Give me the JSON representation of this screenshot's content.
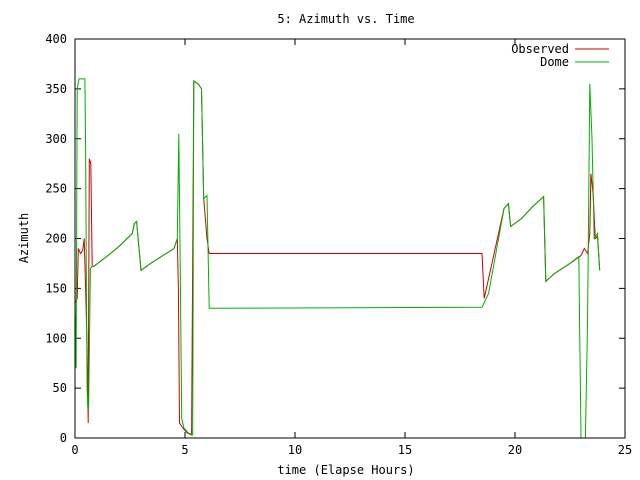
{
  "chart_data": {
    "type": "line",
    "title": "5: Azimuth vs. Time",
    "xlabel": "time (Elapse Hours)",
    "ylabel": "Azimuth",
    "xlim": [
      0,
      25
    ],
    "ylim": [
      0,
      400
    ],
    "xticks": [
      0,
      5,
      10,
      15,
      20,
      25
    ],
    "yticks": [
      0,
      50,
      100,
      150,
      200,
      250,
      300,
      350,
      400
    ],
    "grid": false,
    "legend_position": "top-right",
    "series": [
      {
        "name": "Observed",
        "color": "#cc0000",
        "points": [
          [
            0.0,
            135
          ],
          [
            0.1,
            140
          ],
          [
            0.15,
            190
          ],
          [
            0.25,
            185
          ],
          [
            0.35,
            188
          ],
          [
            0.42,
            200
          ],
          [
            0.48,
            150
          ],
          [
            0.55,
            90
          ],
          [
            0.6,
            15
          ],
          [
            0.65,
            280
          ],
          [
            0.72,
            275
          ],
          [
            0.78,
            172
          ],
          [
            0.85,
            172
          ],
          [
            1.5,
            183
          ],
          [
            2.0,
            192
          ],
          [
            2.6,
            205
          ],
          [
            2.7,
            215
          ],
          [
            2.8,
            217
          ],
          [
            3.0,
            168
          ],
          [
            3.5,
            176
          ],
          [
            4.0,
            183
          ],
          [
            4.5,
            190
          ],
          [
            4.65,
            200
          ],
          [
            4.7,
            150
          ],
          [
            4.75,
            15
          ],
          [
            4.9,
            10
          ],
          [
            5.1,
            5
          ],
          [
            5.3,
            3
          ],
          [
            5.4,
            358
          ],
          [
            5.6,
            355
          ],
          [
            5.75,
            350
          ],
          [
            5.85,
            240
          ],
          [
            6.0,
            200
          ],
          [
            6.1,
            185
          ],
          [
            18.5,
            185
          ],
          [
            18.6,
            140
          ],
          [
            19.5,
            230
          ],
          [
            19.7,
            235
          ],
          [
            19.8,
            212
          ],
          [
            20.3,
            220
          ],
          [
            20.8,
            232
          ],
          [
            21.3,
            242
          ],
          [
            21.4,
            157
          ],
          [
            21.8,
            165
          ],
          [
            22.5,
            175
          ],
          [
            23.0,
            183
          ],
          [
            23.15,
            190
          ],
          [
            23.3,
            185
          ],
          [
            23.4,
            205
          ],
          [
            23.45,
            265
          ],
          [
            23.55,
            245
          ],
          [
            23.65,
            200
          ],
          [
            23.75,
            202
          ],
          [
            23.85,
            168
          ]
        ]
      },
      {
        "name": "Dome",
        "color": "#00b000",
        "points": [
          [
            0.0,
            135
          ],
          [
            0.05,
            70
          ],
          [
            0.1,
            350
          ],
          [
            0.18,
            360
          ],
          [
            0.45,
            360
          ],
          [
            0.48,
            290
          ],
          [
            0.52,
            150
          ],
          [
            0.55,
            50
          ],
          [
            0.58,
            30
          ],
          [
            0.62,
            30
          ],
          [
            0.7,
            170
          ],
          [
            0.78,
            172
          ],
          [
            0.85,
            172
          ],
          [
            1.5,
            183
          ],
          [
            2.0,
            192
          ],
          [
            2.6,
            205
          ],
          [
            2.7,
            215
          ],
          [
            2.8,
            217
          ],
          [
            3.0,
            168
          ],
          [
            3.5,
            176
          ],
          [
            4.0,
            183
          ],
          [
            4.5,
            190
          ],
          [
            4.65,
            200
          ],
          [
            4.72,
            305
          ],
          [
            4.78,
            175
          ],
          [
            4.85,
            20
          ],
          [
            4.95,
            10
          ],
          [
            5.15,
            5
          ],
          [
            5.35,
            3
          ],
          [
            5.4,
            358
          ],
          [
            5.6,
            355
          ],
          [
            5.75,
            350
          ],
          [
            5.85,
            240
          ],
          [
            6.0,
            243
          ],
          [
            6.1,
            130
          ],
          [
            18.5,
            131
          ],
          [
            18.8,
            145
          ],
          [
            19.5,
            230
          ],
          [
            19.7,
            235
          ],
          [
            19.8,
            212
          ],
          [
            20.3,
            220
          ],
          [
            20.8,
            232
          ],
          [
            21.3,
            242
          ],
          [
            21.4,
            157
          ],
          [
            21.8,
            165
          ],
          [
            22.5,
            175
          ],
          [
            22.9,
            182
          ],
          [
            23.0,
            0
          ],
          [
            23.2,
            0
          ],
          [
            23.3,
            120
          ],
          [
            23.4,
            355
          ],
          [
            23.5,
            300
          ],
          [
            23.6,
            200
          ],
          [
            23.75,
            205
          ],
          [
            23.85,
            168
          ]
        ]
      }
    ]
  }
}
